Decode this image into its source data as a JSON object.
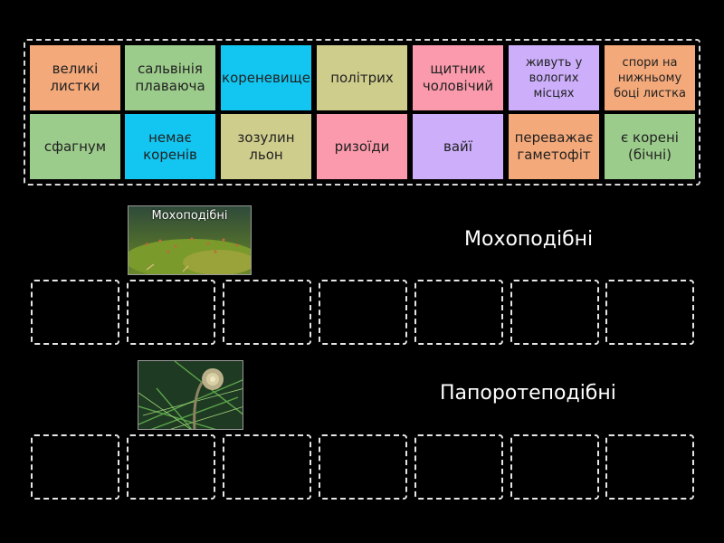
{
  "pool": {
    "cards": [
      {
        "label": "великі\nлистки",
        "color": "orange"
      },
      {
        "label": "сальвінія\nплаваюча",
        "color": "green"
      },
      {
        "label": "кореневище",
        "color": "blue"
      },
      {
        "label": "політрих",
        "color": "olive"
      },
      {
        "label": "щитник\nчоловічий",
        "color": "pink"
      },
      {
        "label": "живуть у\nвологих\nмісцях",
        "color": "purple"
      },
      {
        "label": "спори на\nнижньому\nбоці листка",
        "color": "orange"
      },
      {
        "label": "сфагнум",
        "color": "green"
      },
      {
        "label": "немає\nкоренів",
        "color": "blue"
      },
      {
        "label": "зозулин\nльон",
        "color": "olive"
      },
      {
        "label": "ризоїди",
        "color": "pink"
      },
      {
        "label": "вайї",
        "color": "purple"
      },
      {
        "label": "переважає\nгаметофіт",
        "color": "orange"
      },
      {
        "label": "є корені\n(бічні)",
        "color": "green"
      }
    ]
  },
  "groups": [
    {
      "title": "Мохоподібні",
      "image_caption": "Мохоподібні",
      "image_icon": "moss-photo",
      "slots": 7
    },
    {
      "title": "Папоротеподібні",
      "image_caption": "",
      "image_icon": "fern-fiddlehead-photo",
      "slots": 7
    }
  ],
  "colors": {
    "orange": "#f4a97a",
    "green": "#9ccc8c",
    "blue": "#12c6f1",
    "olive": "#cfcd8c",
    "pink": "#fa9aac",
    "purple": "#ccaefa"
  }
}
